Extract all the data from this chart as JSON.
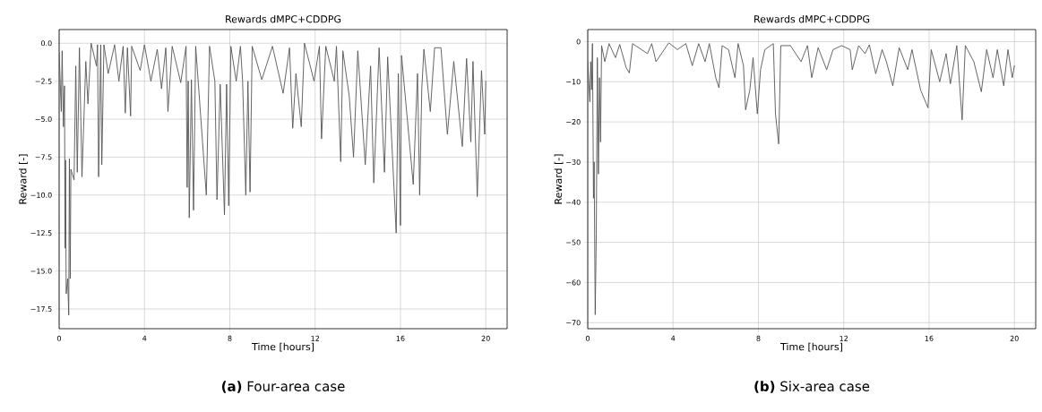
{
  "chart_data": [
    {
      "type": "line",
      "title": "Rewards dMPC+CDDPG",
      "xlabel": "Time [hours]",
      "ylabel": "Reward [-]",
      "color": "#555555",
      "grid": true,
      "xlim": [
        0,
        21
      ],
      "ylim": [
        -18.8,
        0.9
      ],
      "xticks": [
        0,
        4,
        8,
        12,
        16,
        20
      ],
      "yticks": [
        {
          "value": 0,
          "label": "0.0"
        },
        {
          "value": -2.5,
          "label": "−2.5"
        },
        {
          "value": -5,
          "label": "−5.0"
        },
        {
          "value": -7.5,
          "label": "−7.5"
        },
        {
          "value": -10,
          "label": "−10.0"
        },
        {
          "value": -12.5,
          "label": "−12.5"
        },
        {
          "value": -15,
          "label": "−15.0"
        },
        {
          "value": -17.5,
          "label": "−17.5"
        }
      ],
      "annotations": [
        "**(a)** Four-area case"
      ],
      "x": [
        0.0,
        0.1,
        0.14,
        0.2,
        0.25,
        0.28,
        0.3,
        0.33,
        0.4,
        0.45,
        0.48,
        0.52,
        0.55,
        0.7,
        0.78,
        0.85,
        0.95,
        1.07,
        1.25,
        1.35,
        1.5,
        1.75,
        1.8,
        1.85,
        1.95,
        2.0,
        2.1,
        2.3,
        2.6,
        2.8,
        3.0,
        3.1,
        3.2,
        3.35,
        3.4,
        3.8,
        4.0,
        4.3,
        4.6,
        4.8,
        5.0,
        5.1,
        5.3,
        5.7,
        5.95,
        6.0,
        6.05,
        6.1,
        6.2,
        6.3,
        6.4,
        6.9,
        7.05,
        7.3,
        7.4,
        7.55,
        7.75,
        7.85,
        7.95,
        8.05,
        8.3,
        8.5,
        8.6,
        8.75,
        8.85,
        8.95,
        9.05,
        9.5,
        10.0,
        10.5,
        10.8,
        10.95,
        11.1,
        11.35,
        11.5,
        11.95,
        12.2,
        12.3,
        12.5,
        12.9,
        13.0,
        13.2,
        13.3,
        13.6,
        13.8,
        14.0,
        14.35,
        14.6,
        14.75,
        15.0,
        15.25,
        15.4,
        15.8,
        15.9,
        16.0,
        16.05,
        16.6,
        16.8,
        16.9,
        17.0,
        17.1,
        17.4,
        17.6,
        17.9,
        18.2,
        18.5,
        18.9,
        19.1,
        19.3,
        19.4,
        19.6,
        19.8,
        19.95,
        20.0
      ],
      "values": [
        -0.6,
        -4.5,
        -0.5,
        -5.5,
        -2.8,
        -13.5,
        -7.7,
        -16.5,
        -15.5,
        -17.9,
        -7.6,
        -15.5,
        -8.3,
        -9.0,
        -1.5,
        -8.5,
        -0.3,
        -8.8,
        -1.2,
        -4.0,
        -0.0,
        -1.5,
        -0.1,
        -8.8,
        -0.1,
        -8.0,
        -0.1,
        -2.0,
        -0.1,
        -2.5,
        -0.2,
        -4.6,
        -0.3,
        -4.8,
        -0.2,
        -1.8,
        -0.1,
        -2.5,
        -0.4,
        -3.0,
        -0.3,
        -4.5,
        -0.2,
        -2.6,
        -0.2,
        -9.5,
        -2.5,
        -11.5,
        -2.4,
        -11.0,
        -0.2,
        -10.0,
        -0.2,
        -2.5,
        -10.3,
        -2.7,
        -11.3,
        -2.7,
        -10.7,
        -0.2,
        -2.5,
        -0.2,
        -2.5,
        -10.0,
        -2.5,
        -9.8,
        -0.2,
        -2.4,
        -0.2,
        -3.3,
        -0.3,
        -5.6,
        -2.0,
        -5.5,
        -0.0,
        -2.5,
        -0.2,
        -6.3,
        -0.2,
        -2.5,
        -0.2,
        -7.8,
        -0.5,
        -3.5,
        -7.5,
        -0.5,
        -8.0,
        -1.5,
        -9.2,
        -0.3,
        -8.5,
        -0.9,
        -12.5,
        -2.0,
        -12.0,
        -0.8,
        -9.3,
        -2.0,
        -10.0,
        -3.0,
        -0.4,
        -4.5,
        -0.3,
        -0.3,
        -6.0,
        -1.2,
        -6.8,
        -1.0,
        -6.5,
        -1.2,
        -10.1,
        -1.8,
        -6.0,
        -2.5
      ]
    },
    {
      "type": "line",
      "title": "Rewards dMPC+CDDPG",
      "xlabel": "Time [hours]",
      "ylabel": "Reward [-]",
      "color": "#555555",
      "grid": true,
      "xlim": [
        0,
        21
      ],
      "ylim": [
        -71.5,
        3
      ],
      "xticks": [
        0,
        4,
        8,
        12,
        16,
        20
      ],
      "yticks": [
        0,
        {
          "value": -10,
          "label": "−10"
        },
        {
          "value": -20,
          "label": "−20"
        },
        {
          "value": -30,
          "label": "−30"
        },
        {
          "value": -40,
          "label": "−40"
        },
        {
          "value": -50,
          "label": "−50"
        },
        {
          "value": -60,
          "label": "−60"
        },
        {
          "value": -70,
          "label": "−70"
        }
      ],
      "annotations": [
        "**(b)** Six-area case"
      ],
      "x": [
        0,
        0.1,
        0.14,
        0.18,
        0.22,
        0.27,
        0.3,
        0.35,
        0.4,
        0.45,
        0.5,
        0.55,
        0.6,
        0.65,
        0.8,
        1.0,
        1.3,
        1.5,
        1.8,
        1.95,
        2.1,
        2.8,
        3.0,
        3.2,
        3.8,
        4.2,
        4.6,
        4.9,
        5.2,
        5.5,
        5.7,
        6.0,
        6.15,
        6.3,
        6.6,
        6.9,
        7.05,
        7.3,
        7.4,
        7.6,
        7.75,
        7.95,
        8.1,
        8.3,
        8.7,
        8.8,
        8.95,
        9.05,
        9.5,
        10.0,
        10.3,
        10.5,
        10.8,
        11.2,
        11.5,
        11.9,
        12.3,
        12.4,
        12.7,
        13.0,
        13.2,
        13.5,
        13.8,
        14.0,
        14.3,
        14.6,
        15.0,
        15.2,
        15.6,
        15.95,
        16.1,
        16.5,
        16.8,
        17.0,
        17.3,
        17.55,
        17.7,
        18.1,
        18.45,
        18.7,
        19.0,
        19.2,
        19.5,
        19.7,
        19.9,
        20
      ],
      "values": [
        -5,
        -15,
        -5,
        -12,
        -0.5,
        -39,
        -30,
        -68,
        -48,
        -4,
        -33,
        -9,
        -25,
        -1,
        -5,
        -0.5,
        -4,
        -0.7,
        -6.5,
        -7.8,
        -0.5,
        -3,
        -0.5,
        -5,
        -0.3,
        -2,
        -0.5,
        -6,
        -0.5,
        -5,
        -0.5,
        -9,
        -11.5,
        -1,
        -2,
        -9,
        -0.5,
        -6,
        -17,
        -12,
        -4,
        -18,
        -7,
        -2,
        -0.5,
        -18,
        -25.5,
        -1,
        -1,
        -5,
        -1,
        -9,
        -1.5,
        -7,
        -2,
        -1,
        -2,
        -7,
        -1,
        -3,
        -0.8,
        -8,
        -2,
        -5,
        -11,
        -1.5,
        -7,
        -2,
        -12,
        -16.5,
        -2,
        -10,
        -3,
        -10.5,
        -1,
        -19.5,
        -1,
        -5,
        -12.5,
        -2,
        -9,
        -2,
        -11,
        -2,
        -9,
        -6
      ]
    }
  ]
}
